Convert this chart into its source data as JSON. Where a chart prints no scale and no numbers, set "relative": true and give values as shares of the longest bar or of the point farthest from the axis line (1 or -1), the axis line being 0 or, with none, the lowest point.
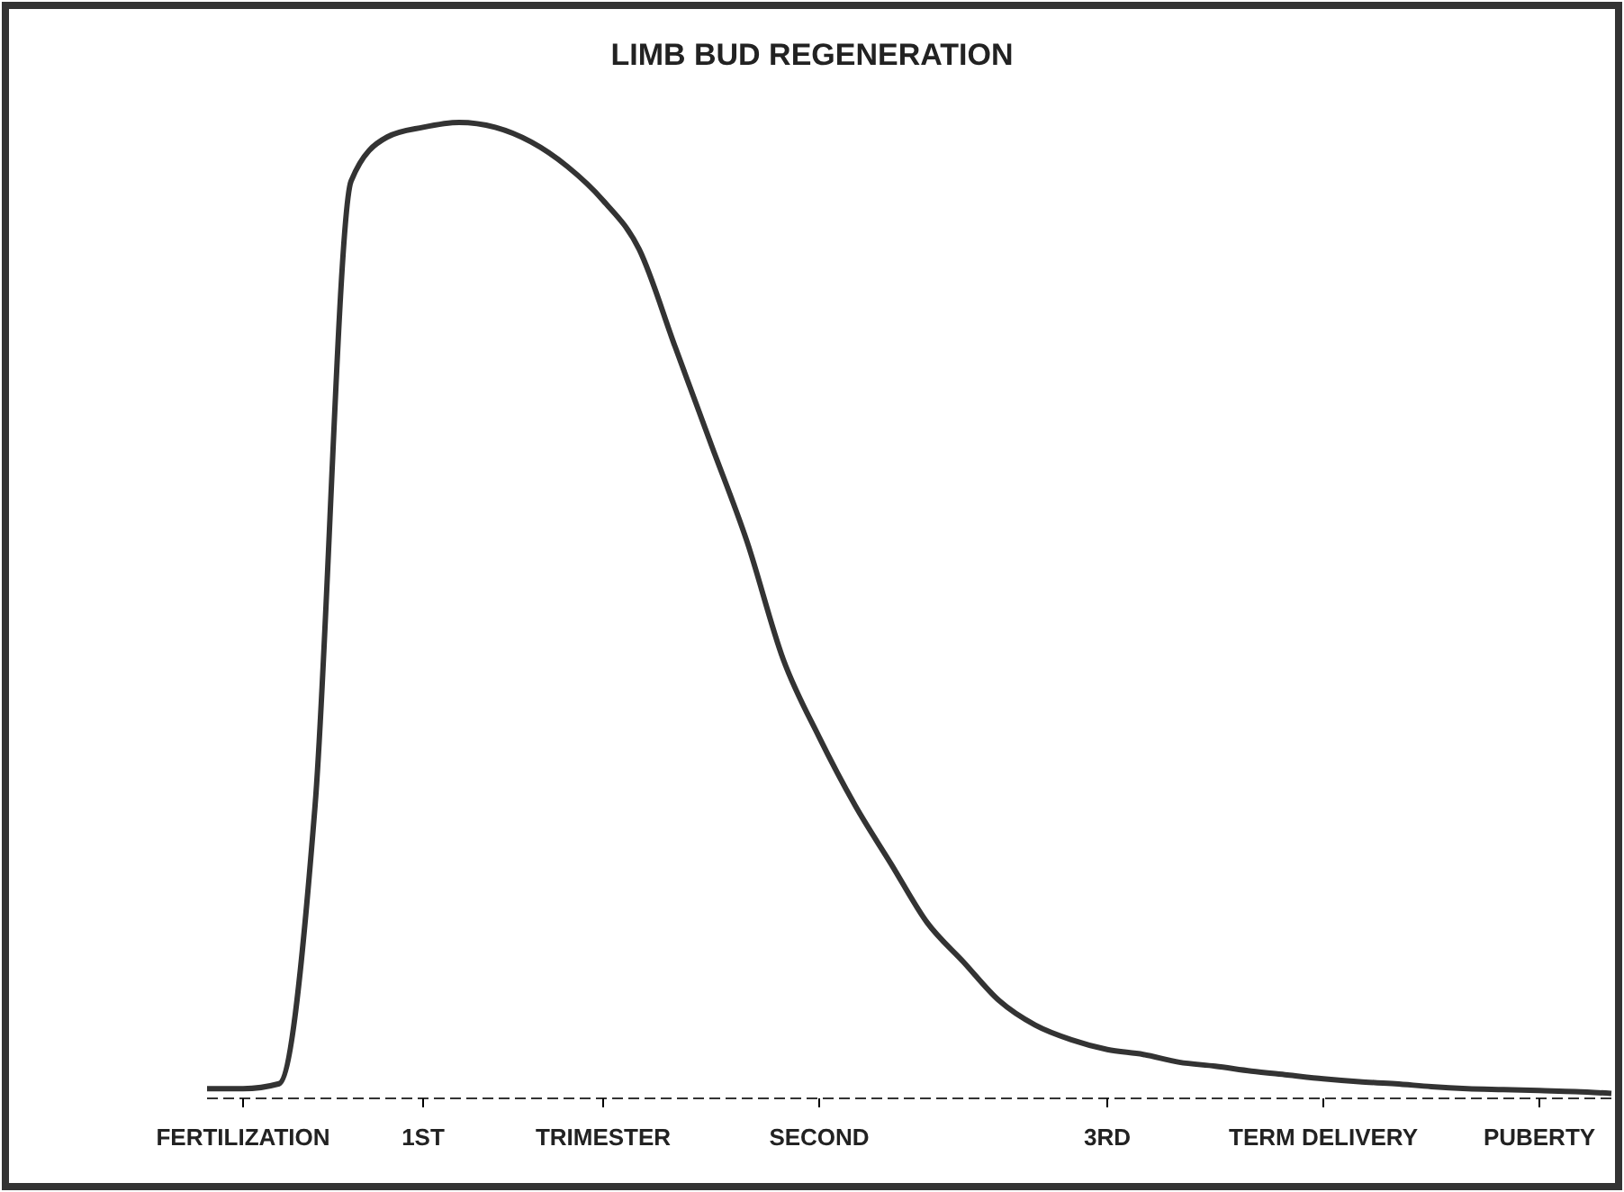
{
  "chart_data": {
    "type": "line",
    "title": "LIMB BUD REGENERATION",
    "relative": true,
    "tick_labels": "x",
    "grid": false,
    "marker": "none",
    "line_style": "solid",
    "categories": [
      null,
      "FERTILIZATION",
      null,
      null,
      null,
      null,
      "1ST",
      null,
      null,
      null,
      null,
      "TRIMESTER",
      null,
      null,
      null,
      null,
      null,
      "SECOND",
      null,
      null,
      null,
      null,
      null,
      null,
      null,
      "3RD",
      null,
      null,
      null,
      null,
      null,
      "TERM DELIVERY",
      null,
      null,
      null,
      null,
      null,
      "PUBERTY",
      null,
      null
    ],
    "series": [
      {
        "color": "#333333",
        "values": [
          0.01,
          0.01,
          0.015,
          0.3,
          0.94,
          0.985,
          0.995,
          1,
          0.995,
          0.98,
          0.955,
          0.92,
          0.87,
          0.77,
          0.67,
          0.57,
          0.45,
          0.37,
          0.3,
          0.24,
          0.18,
          0.14,
          0.1,
          0.075,
          0.06,
          0.05,
          0.045,
          0.037,
          0.033,
          0.028,
          0.024,
          0.02,
          0.017,
          0.015,
          0.012,
          0.01,
          0.009,
          0.008,
          0.007,
          0.005
        ]
      }
    ]
  }
}
